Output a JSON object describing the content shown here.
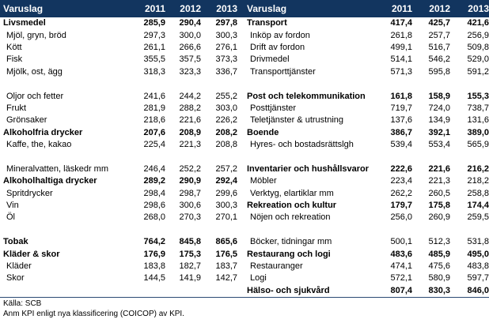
{
  "table": {
    "headers": [
      "Varuslag",
      "2011",
      "2012",
      "2013"
    ],
    "left_rows": [
      {
        "type": "cat",
        "label": "Livsmedel",
        "v": [
          "285,9",
          "290,4",
          "297,8"
        ]
      },
      {
        "type": "sub",
        "label": "Mjöl, gryn, bröd",
        "v": [
          "297,3",
          "300,0",
          "300,3"
        ]
      },
      {
        "type": "sub",
        "label": "Kött",
        "v": [
          "261,1",
          "266,6",
          "276,1"
        ]
      },
      {
        "type": "sub",
        "label": "Fisk",
        "v": [
          "355,5",
          "357,5",
          "373,3"
        ]
      },
      {
        "type": "sub",
        "label": "Mjölk, ost, ägg",
        "v": [
          "318,3",
          "323,3",
          "336,7"
        ]
      },
      {
        "type": "blank",
        "label": "",
        "v": [
          "",
          "",
          ""
        ]
      },
      {
        "type": "sub",
        "label": "Oljor och fetter",
        "v": [
          "241,6",
          "244,2",
          "255,2"
        ]
      },
      {
        "type": "sub",
        "label": "Frukt",
        "v": [
          "281,9",
          "288,2",
          "303,0"
        ]
      },
      {
        "type": "sub",
        "label": "Grönsaker",
        "v": [
          "218,6",
          "221,6",
          "226,2"
        ]
      },
      {
        "type": "cat",
        "label": "Alkoholfria drycker",
        "v": [
          "207,6",
          "208,9",
          "208,2"
        ]
      },
      {
        "type": "sub",
        "label": "Kaffe, the, kakao",
        "v": [
          "225,4",
          "221,3",
          "208,8"
        ]
      },
      {
        "type": "blank",
        "label": "",
        "v": [
          "",
          "",
          ""
        ]
      },
      {
        "type": "sub",
        "label": "Mineralvatten, läskedr mm",
        "v": [
          "246,4",
          "252,2",
          "257,2"
        ]
      },
      {
        "type": "cat",
        "label": "Alkoholhaltiga drycker",
        "v": [
          "289,2",
          "290,9",
          "292,4"
        ]
      },
      {
        "type": "sub",
        "label": "Spritdrycker",
        "v": [
          "298,4",
          "298,7",
          "299,6"
        ]
      },
      {
        "type": "sub",
        "label": "Vin",
        "v": [
          "298,6",
          "300,6",
          "300,3"
        ]
      },
      {
        "type": "sub",
        "label": "Öl",
        "v": [
          "268,0",
          "270,3",
          "270,1"
        ]
      },
      {
        "type": "blank",
        "label": "",
        "v": [
          "",
          "",
          ""
        ]
      },
      {
        "type": "cat",
        "label": "Tobak",
        "v": [
          "764,2",
          "845,8",
          "865,6"
        ]
      },
      {
        "type": "cat",
        "label": "Kläder & skor",
        "v": [
          "176,9",
          "175,3",
          "176,5"
        ]
      },
      {
        "type": "sub",
        "label": "Kläder",
        "v": [
          "183,8",
          "182,7",
          "183,7"
        ]
      },
      {
        "type": "sub",
        "label": "Skor",
        "v": [
          "144,5",
          "141,9",
          "142,7"
        ]
      },
      {
        "type": "blank",
        "label": "",
        "v": [
          "",
          "",
          ""
        ]
      }
    ],
    "right_rows": [
      {
        "type": "cat",
        "label": "Transport",
        "v": [
          "417,4",
          "425,7",
          "421,6"
        ]
      },
      {
        "type": "sub",
        "label": "Inköp av fordon",
        "v": [
          "261,8",
          "257,7",
          "256,9"
        ]
      },
      {
        "type": "sub",
        "label": "Drift av fordon",
        "v": [
          "499,1",
          "516,7",
          "509,8"
        ]
      },
      {
        "type": "sub",
        "label": "Drivmedel",
        "v": [
          "514,1",
          "546,2",
          "529,0"
        ]
      },
      {
        "type": "sub",
        "label": "Transporttjänster",
        "v": [
          "571,3",
          "595,8",
          "591,2"
        ]
      },
      {
        "type": "blank",
        "label": "",
        "v": [
          "",
          "",
          ""
        ]
      },
      {
        "type": "cat",
        "label": "Post och telekommunikation",
        "v": [
          "161,8",
          "158,9",
          "155,3"
        ]
      },
      {
        "type": "sub",
        "label": "Posttjänster",
        "v": [
          "719,7",
          "724,0",
          "738,7"
        ]
      },
      {
        "type": "sub",
        "label": "Teletjänster & utrustning",
        "v": [
          "137,6",
          "134,9",
          "131,6"
        ]
      },
      {
        "type": "cat",
        "label": "Boende",
        "v": [
          "386,7",
          "392,1",
          "389,0"
        ]
      },
      {
        "type": "sub",
        "label": "Hyres- och bostadsrättslgh",
        "v": [
          "539,4",
          "553,4",
          "565,9"
        ]
      },
      {
        "type": "blank",
        "label": "",
        "v": [
          "",
          "",
          ""
        ]
      },
      {
        "type": "cat",
        "label": "Inventarier och hushållsvaror",
        "v": [
          "222,6",
          "221,6",
          "216,2"
        ]
      },
      {
        "type": "sub",
        "label": "Möbler",
        "v": [
          "223,4",
          "221,3",
          "218,2"
        ]
      },
      {
        "type": "sub",
        "label": "Verktyg, elartiklar mm",
        "v": [
          "262,2",
          "260,5",
          "258,8"
        ]
      },
      {
        "type": "cat",
        "label": "Rekreation och kultur",
        "v": [
          "179,7",
          "175,8",
          "174,4"
        ]
      },
      {
        "type": "sub",
        "label": "Nöjen och rekreation",
        "v": [
          "256,0",
          "260,9",
          "259,5"
        ]
      },
      {
        "type": "blank",
        "label": "",
        "v": [
          "",
          "",
          ""
        ]
      },
      {
        "type": "sub",
        "label": "Böcker, tidningar mm",
        "v": [
          "500,1",
          "512,3",
          "531,8"
        ]
      },
      {
        "type": "cat",
        "label": "Restaurang och logi",
        "v": [
          "483,6",
          "485,9",
          "495,0"
        ]
      },
      {
        "type": "sub",
        "label": "Restauranger",
        "v": [
          "474,1",
          "475,6",
          "483,8"
        ]
      },
      {
        "type": "sub",
        "label": "Logi",
        "v": [
          "572,1",
          "580,9",
          "597,7"
        ]
      },
      {
        "type": "cat",
        "label": "Hälso- och sjukvård",
        "v": [
          "807,4",
          "830,3",
          "846,0"
        ]
      }
    ]
  },
  "footer": {
    "source": "Källa:  SCB",
    "note": "Anm  KPI enligt nya klassificering (COICOP) av KPI."
  }
}
